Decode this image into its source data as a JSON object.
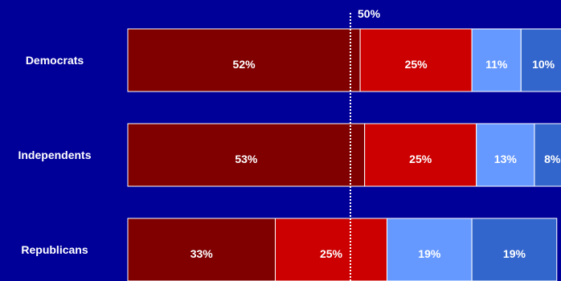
{
  "chart_data": {
    "type": "bar",
    "orientation": "horizontal",
    "stacked": true,
    "categories": [
      "Democrats",
      "Independents",
      "Republicans"
    ],
    "series": [
      {
        "values": [
          52,
          53,
          33
        ],
        "color": "#800000"
      },
      {
        "values": [
          25,
          25,
          25
        ],
        "color": "#CC0000"
      },
      {
        "values": [
          11,
          13,
          19
        ],
        "color": "#6699FF"
      },
      {
        "values": [
          10,
          8,
          19
        ],
        "color": "#3366CC"
      }
    ],
    "data_labels": [
      [
        "52%",
        "53%",
        "33%"
      ],
      [
        "25%",
        "25%",
        "25%"
      ],
      [
        "11%",
        "13%",
        "19%"
      ],
      [
        "10%",
        "8%",
        "19%"
      ]
    ],
    "reference_line": {
      "value": 50,
      "label": "50%",
      "style": "dotted",
      "color": "#FFFFFF"
    },
    "xlim": [
      0,
      100
    ],
    "grid": false,
    "legend": "none",
    "background": "#000099",
    "segment_border": "#FFFFFF"
  }
}
